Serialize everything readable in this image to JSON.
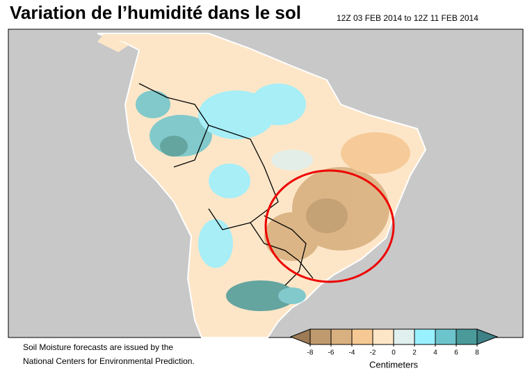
{
  "title": "Variation de l’humidité dans le sol",
  "period": "12Z 03 FEB 2014 to 12Z 11 FEB 2014",
  "footnote": [
    "Soil Moisture forecasts are issued by the",
    "National Centers for Environmental Prediction."
  ],
  "legend": {
    "label": "Centimeters",
    "ticks": [
      -8,
      -6,
      -4,
      -2,
      0,
      2,
      4,
      6,
      8
    ],
    "low_color": "#9c7b56",
    "colors": [
      "#bf9a6e",
      "#d9b07f",
      "#f6c994",
      "#fde6c8",
      "#e0f0ee",
      "#99f0ff",
      "#6cc4cc",
      "#4a9a9a"
    ],
    "high_color": "#3d8085"
  }
}
